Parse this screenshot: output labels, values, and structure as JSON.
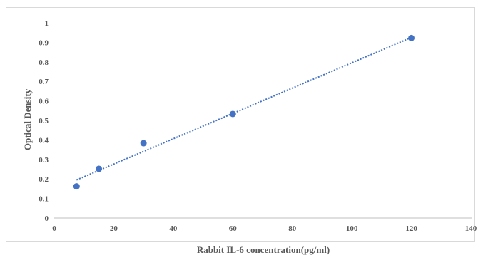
{
  "chart_data": {
    "type": "scatter",
    "title": "",
    "xlabel": "Rabbit IL-6 concentration(pg/ml)",
    "ylabel": "Optical Density",
    "xlim": [
      0,
      140
    ],
    "ylim": [
      0,
      1
    ],
    "x_ticks": [
      "0",
      "20",
      "40",
      "60",
      "80",
      "100",
      "120",
      "140"
    ],
    "y_ticks": [
      "0",
      "0.1",
      "0.2",
      "0.3",
      "0.4",
      "0.5",
      "0.6",
      "0.7",
      "0.8",
      "0.9",
      "1"
    ],
    "grid": false,
    "legend": "none",
    "marker_color": "#4472c4",
    "trendline": {
      "style": "dotted-linear",
      "x": [
        7.5,
        120
      ],
      "y": [
        0.195,
        0.925
      ]
    },
    "points": [
      {
        "x": 7.5,
        "y": 0.162
      },
      {
        "x": 15,
        "y": 0.252
      },
      {
        "x": 30,
        "y": 0.383
      },
      {
        "x": 60,
        "y": 0.533
      },
      {
        "x": 120,
        "y": 0.922
      }
    ]
  }
}
